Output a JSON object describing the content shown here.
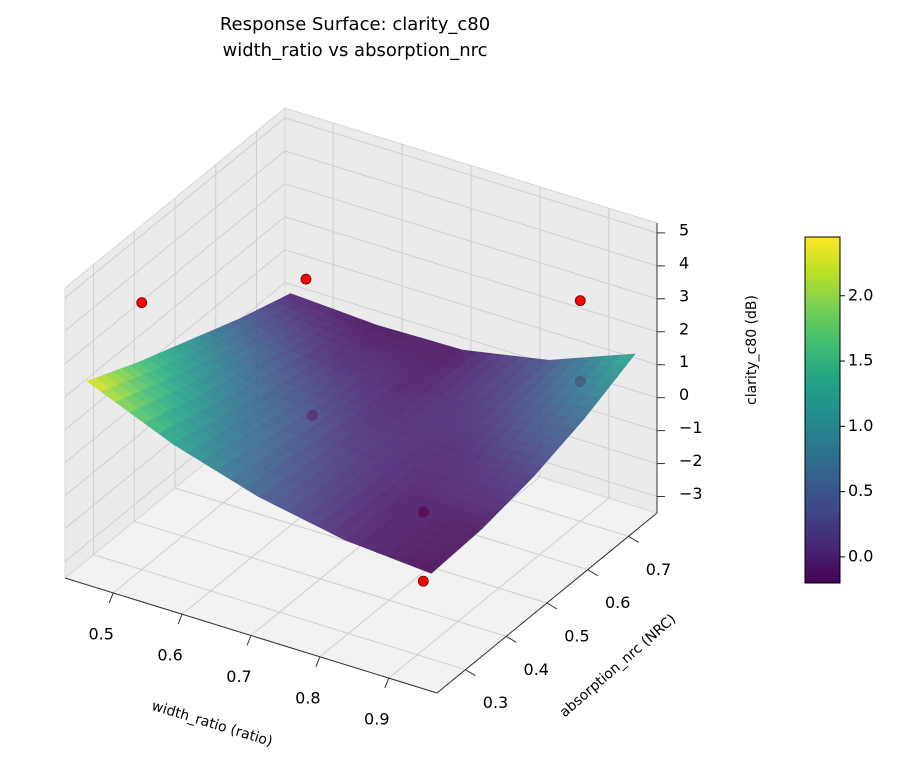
{
  "chart_data": {
    "type": "surface3d",
    "title": "Response Surface: clarity_c80",
    "subtitle": "width_ratio vs absorption_nrc",
    "x_label": "width_ratio (ratio)",
    "y_label": "absorption_nrc (NRC)",
    "z_label": "clarity_c80 (dB)",
    "colormap": "viridis",
    "surface": {
      "x": [
        0.45,
        0.575,
        0.7,
        0.825,
        0.95
      ],
      "y": [
        0.25,
        0.375,
        0.5,
        0.625,
        0.75
      ],
      "z": [
        [
          2.4,
          1.3,
          0.5,
          0.0,
          -0.2
        ],
        [
          1.7,
          0.9,
          0.3,
          -0.05,
          -0.1
        ],
        [
          1.1,
          0.5,
          0.1,
          0.0,
          0.2
        ],
        [
          0.5,
          0.1,
          -0.05,
          0.2,
          0.7
        ],
        [
          0.0,
          -0.15,
          -0.1,
          0.4,
          1.4
        ]
      ]
    },
    "points": {
      "color": "#ff0000",
      "x": [
        0.5,
        0.49,
        0.9,
        0.6,
        0.9,
        0.82,
        0.82
      ],
      "y": [
        0.3,
        0.72,
        0.7,
        0.55,
        0.7,
        0.45,
        0.45
      ],
      "z": [
        4.6,
        1.0,
        3.2,
        -0.7,
        0.75,
        -1.2,
        -3.3
      ]
    },
    "xlim": [
      0.43,
      0.97
    ],
    "ylim": [
      0.23,
      0.77
    ],
    "zlim": [
      -3.5,
      5.3
    ],
    "xticks": [
      0.5,
      0.6,
      0.7,
      0.8,
      0.9
    ],
    "yticks": [
      0.3,
      0.4,
      0.5,
      0.6,
      0.7
    ],
    "zticks": [
      {
        "value": -3,
        "label": "−3"
      },
      {
        "value": -2,
        "label": "−2"
      },
      {
        "value": -1,
        "label": "−1"
      },
      0,
      1,
      2,
      3,
      4,
      5
    ],
    "colorbar": {
      "lim": [
        -0.2,
        2.45
      ],
      "ticks": [
        {
          "value": 0,
          "label": "0.0"
        },
        0.5,
        {
          "value": 1,
          "label": "1.0"
        },
        1.5,
        {
          "value": 2,
          "label": "2.0"
        }
      ]
    },
    "grid": true
  }
}
